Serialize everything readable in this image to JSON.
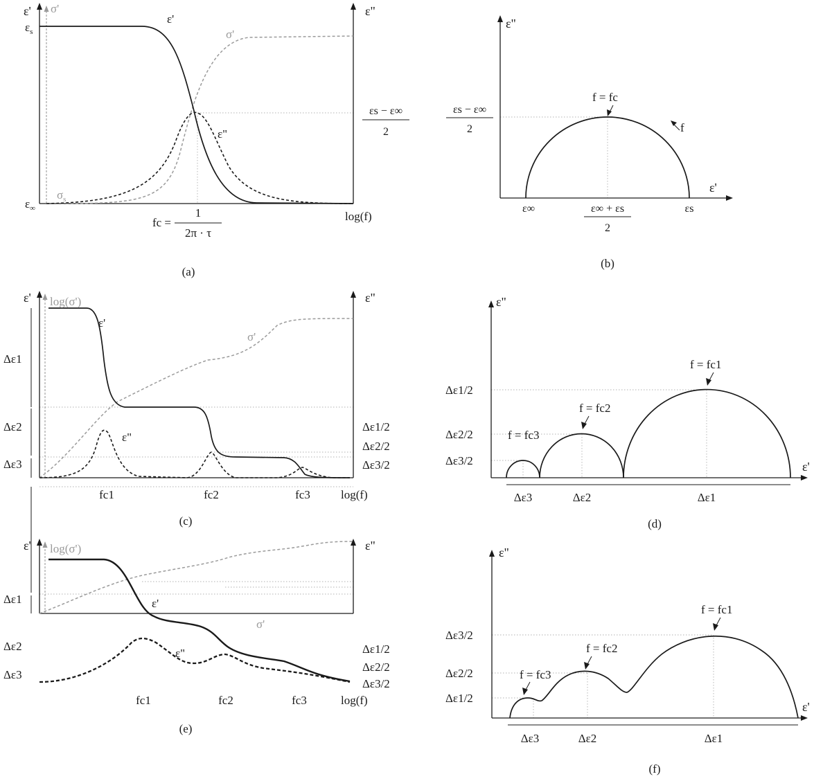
{
  "panels": {
    "a": {
      "caption": "(a)",
      "y_left": "ε'",
      "y_left_gray": "σ'",
      "y_right": "ε\"",
      "eps_s": "ε",
      "eps_s_sub": "s",
      "eps_inf": "ε",
      "eps_inf_sub": "∞",
      "sigma_s": "σ",
      "sigma_s_sub": "s",
      "curve_eps_prime": "ε'",
      "curve_sigma": "σ'",
      "curve_eps_dprime": "ε\"",
      "right_num": "εs − ε∞",
      "right_den": "2",
      "fc_lhs": "fc =",
      "fc_num": "1",
      "fc_den": "2π · τ",
      "x_label": "log(f)"
    },
    "b": {
      "caption": "(b)",
      "y_axis": "ε\"",
      "x_axis": "ε'",
      "left_num": "εs − ε∞",
      "left_den": "2",
      "peak": "f = fc",
      "f_arrow": "f",
      "x_inf": "ε∞",
      "x_mid_num": "ε∞ + εs",
      "x_mid_den": "2",
      "x_s": "εs"
    },
    "c": {
      "caption": "(c)",
      "y_left": "ε'",
      "y_left_gray": "log(σ')",
      "y_right": "ε\"",
      "d1": "Δε1",
      "d2": "Δε2",
      "d3": "Δε3",
      "curve_eps_prime": "ε'",
      "curve_sigma": "σ'",
      "curve_eps_dprime": "ε\"",
      "r1": "Δε1/2",
      "r2": "Δε2/2",
      "r3": "Δε3/2",
      "fc1": "fc1",
      "fc2": "fc2",
      "fc3": "fc3",
      "x_label": "log(f)"
    },
    "d": {
      "caption": "(d)",
      "y_axis": "ε\"",
      "x_axis": "ε'",
      "l1": "Δε1/2",
      "l2": "Δε2/2",
      "l3": "Δε3/2",
      "p1": "f = fc1",
      "p2": "f = fc2",
      "p3": "f = fc3",
      "s1": "Δε1",
      "s2": "Δε2",
      "s3": "Δε3"
    },
    "e": {
      "caption": "(e)",
      "y_left": "ε'",
      "y_left_gray": "log(σ')",
      "y_right": "ε\"",
      "d1": "Δε1",
      "d2": "Δε2",
      "d3": "Δε3",
      "curve_eps_prime": "ε'",
      "curve_sigma": "σ'",
      "curve_eps_dprime": "ε\"",
      "r1": "Δε1/2",
      "r2": "Δε2/2",
      "r3": "Δε3/2",
      "fc1": "fc1",
      "fc2": "fc2",
      "fc3": "fc3",
      "x_label": "log(f)"
    },
    "f": {
      "caption": "(f)",
      "y_axis": "ε\"",
      "x_axis": "ε'",
      "l1": "Δε3/2",
      "l2": "Δε2/2",
      "l3": "Δε1/2",
      "p1": "f = fc1",
      "p2": "f = fc2",
      "p3": "f = fc3",
      "s1": "Δε1",
      "s2": "Δε2",
      "s3": "Δε3"
    }
  },
  "colors": {
    "ink": "#1a1a1a",
    "gray": "#9a9a9a",
    "guide": "#b0b0b0"
  }
}
